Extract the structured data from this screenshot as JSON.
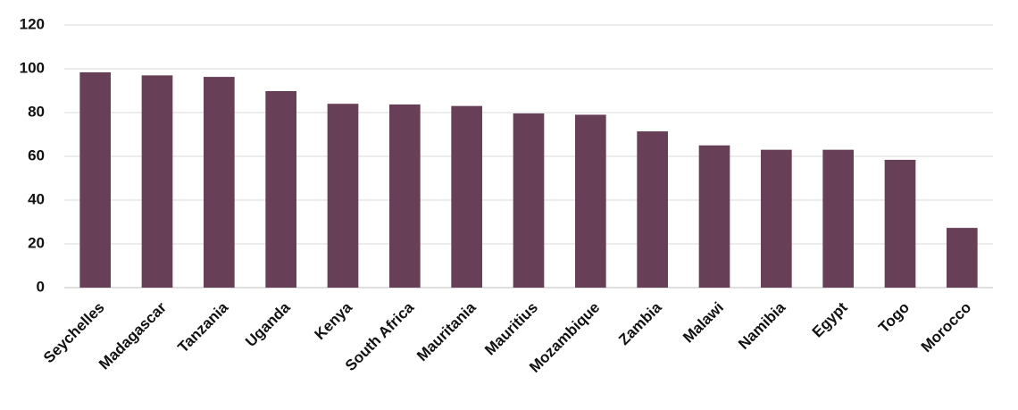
{
  "chart_data": {
    "type": "bar",
    "categories": [
      "Seychelles",
      "Madagascar",
      "Tanzania",
      "Uganda",
      "Kenya",
      "South Africa",
      "Mauritania",
      "Mauritius",
      "Mozambique",
      "Zambia",
      "Malawi",
      "Namibia",
      "Egypt",
      "Togo",
      "Morocco"
    ],
    "values": [
      98.4,
      97,
      96.3,
      89.8,
      84,
      83.7,
      83,
      79.6,
      79,
      71.4,
      65,
      63,
      63,
      58.4,
      27.3
    ],
    "color": "#673f57",
    "ylim": [
      0,
      120
    ],
    "yticks": [
      0,
      20,
      40,
      60,
      80,
      100,
      120
    ],
    "grid": true
  }
}
